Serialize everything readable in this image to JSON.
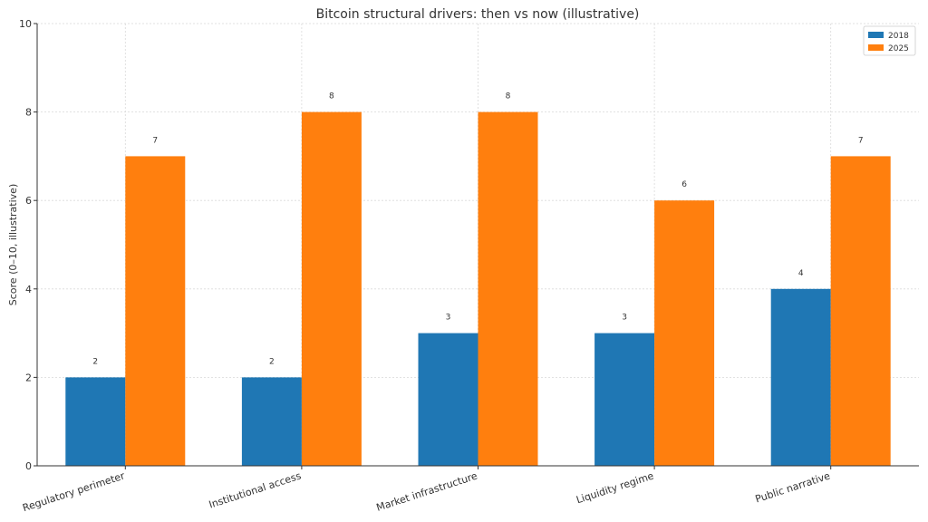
{
  "chart_data": {
    "type": "bar",
    "title": "Bitcoin structural drivers: then vs now (illustrative)",
    "xlabel": "",
    "ylabel": "Score (0–10, illustrative)",
    "ylim": [
      0,
      10
    ],
    "yticks": [
      "0",
      "2",
      "4",
      "6",
      "8",
      "10"
    ],
    "categories": [
      "Regulatory perimeter",
      "Institutional access",
      "Market infrastructure",
      "Liquidity regime",
      "Public narrative"
    ],
    "series": [
      {
        "name": "2018",
        "color": "#1f77b4",
        "values": [
          2,
          2,
          3,
          3,
          4
        ]
      },
      {
        "name": "2025",
        "color": "#ff7f0e",
        "values": [
          7,
          8,
          8,
          6,
          7
        ]
      }
    ],
    "grid": true,
    "legend_position": "top-right"
  }
}
